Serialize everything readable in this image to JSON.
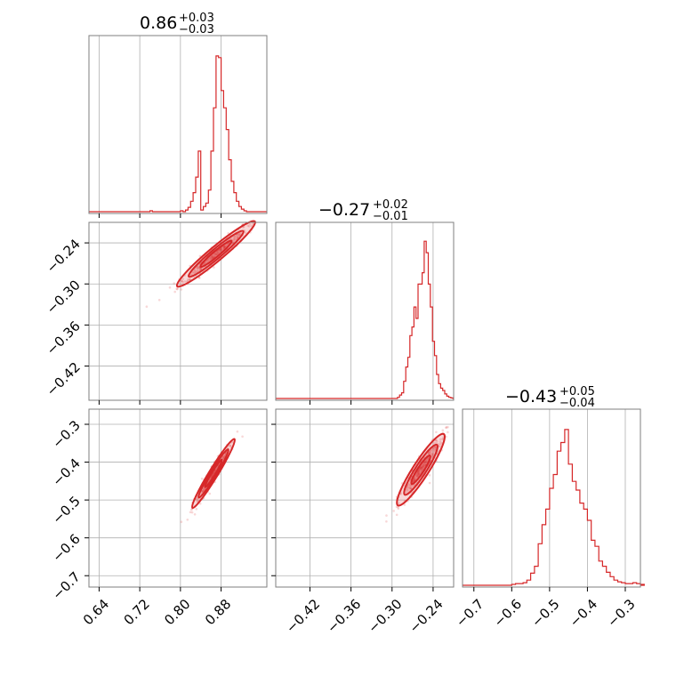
{
  "chart_data": {
    "type": "corner",
    "color": "#d62728",
    "parameters": [
      {
        "range": [
          0.62,
          0.97
        ],
        "ticks": [
          0.64,
          0.72,
          0.8,
          0.88
        ],
        "tick_labels": [
          "0.64",
          "0.72",
          "0.80",
          "0.88"
        ],
        "title": {
          "main": "0.86",
          "plus": "+0.03",
          "minus": "−0.03"
        },
        "hist": {
          "bins": [
            0.84,
            0.845,
            0.85,
            0.855,
            0.86,
            0.865,
            0.87,
            0.875,
            0.88,
            0.885,
            0.89,
            0.895,
            0.9,
            0.905,
            0.91,
            0.915,
            0.92,
            0.925
          ],
          "counts": [
            2,
            6,
            10,
            25,
            70,
            120,
            180,
            178,
            140,
            120,
            95,
            60,
            35,
            22,
            12,
            6,
            3,
            1
          ],
          "prefix_bins": [
            [
              0.62,
              0
            ],
            [
              0.74,
              1
            ],
            [
              0.745,
              0
            ],
            [
              0.8,
              1
            ],
            [
              0.805,
              0
            ],
            [
              0.81,
              2
            ],
            [
              0.815,
              5
            ],
            [
              0.82,
              12
            ],
            [
              0.825,
              22
            ],
            [
              0.83,
              40
            ],
            [
              0.835,
              70
            ]
          ],
          "count_max": 185
        }
      },
      {
        "range": [
          -0.47,
          -0.21
        ],
        "ticks": [
          -0.42,
          -0.36,
          -0.3,
          -0.24
        ],
        "tick_labels": [
          "−0.42",
          "−0.36",
          "−0.30",
          "−0.24"
        ],
        "title": {
          "main": "−0.27",
          "plus": "+0.02",
          "minus": "−0.01"
        },
        "hist": {
          "bins": [
            -0.292,
            -0.289,
            -0.286,
            -0.283,
            -0.28,
            -0.277,
            -0.274,
            -0.271,
            -0.268,
            -0.265,
            -0.262,
            -0.259,
            -0.256,
            -0.253,
            -0.25,
            -0.247,
            -0.244,
            -0.241,
            -0.238,
            -0.235,
            -0.232,
            -0.229,
            -0.226,
            -0.223,
            -0.22,
            -0.217,
            -0.214
          ],
          "counts": [
            2,
            6,
            10,
            30,
            55,
            72,
            110,
            125,
            160,
            140,
            200,
            200,
            220,
            275,
            255,
            200,
            160,
            100,
            75,
            42,
            26,
            18,
            14,
            8,
            4,
            2,
            1
          ],
          "count_max": 280
        }
      },
      {
        "range": [
          -0.73,
          -0.26
        ],
        "ticks": [
          -0.7,
          -0.6,
          -0.5,
          -0.4,
          -0.3
        ],
        "tick_labels": [
          "−0.7",
          "−0.6",
          "−0.5",
          "−0.4",
          "−0.3"
        ],
        "title": {
          "main": "−0.43",
          "plus": "+0.05",
          "minus": "−0.04"
        },
        "hist": {
          "bins": [
            -0.58,
            -0.57,
            -0.56,
            -0.55,
            -0.54,
            -0.53,
            -0.52,
            -0.51,
            -0.5,
            -0.49,
            -0.48,
            -0.47,
            -0.46,
            -0.45,
            -0.44,
            -0.43,
            -0.42,
            -0.41,
            -0.4,
            -0.39,
            -0.38,
            -0.37,
            -0.36,
            -0.35,
            -0.34,
            -0.33,
            -0.32,
            -0.31,
            -0.3,
            -0.29,
            -0.28,
            -0.27,
            -0.26
          ],
          "counts": [
            2,
            3,
            6,
            14,
            22,
            48,
            70,
            88,
            112,
            128,
            155,
            165,
            180,
            140,
            120,
            110,
            95,
            88,
            75,
            52,
            45,
            28,
            22,
            15,
            10,
            6,
            4,
            3,
            2,
            2,
            3,
            2,
            1
          ],
          "prefix_bins": [
            [
              -0.73,
              0
            ],
            [
              -0.6,
              1
            ],
            [
              -0.59,
              2
            ]
          ],
          "count_max": 185
        }
      }
    ],
    "pairs": [
      {
        "x_param": 0,
        "y_param": 1,
        "center": [
          0.87,
          -0.256
        ],
        "slope": 0.62,
        "spread_major": 0.045,
        "spread_minor": 0.0055
      },
      {
        "x_param": 0,
        "y_param": 2,
        "center": [
          0.865,
          -0.43
        ],
        "slope": 2.2,
        "spread_major": 0.05,
        "spread_minor": 0.0045
      },
      {
        "x_param": 1,
        "y_param": 2,
        "center": [
          -0.258,
          -0.42
        ],
        "slope": 2.8,
        "spread_major": 0.05,
        "spread_minor": 0.006
      }
    ],
    "grid": true
  }
}
